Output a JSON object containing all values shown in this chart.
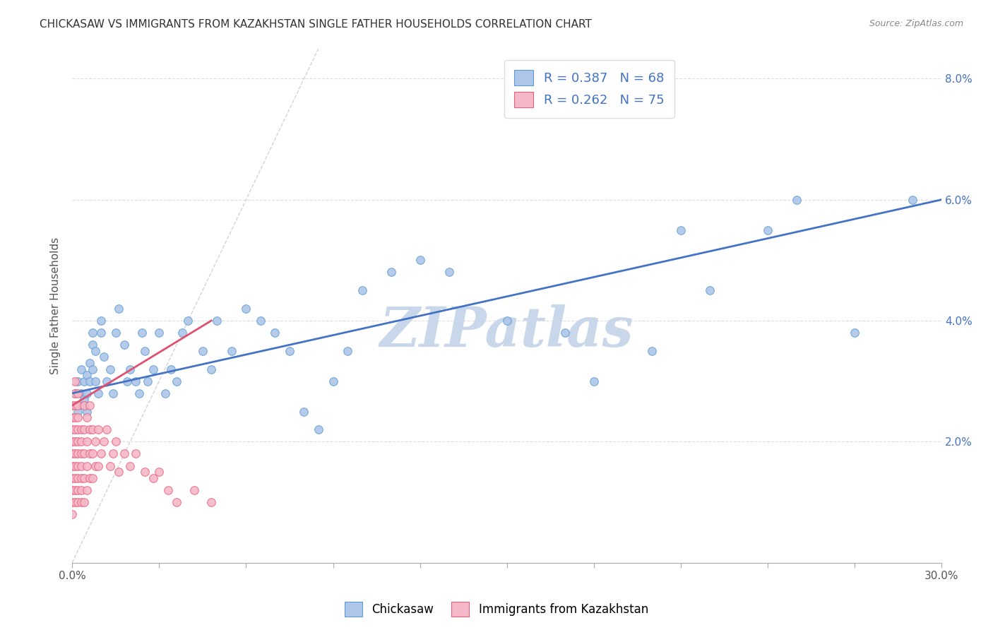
{
  "title": "CHICKASAW VS IMMIGRANTS FROM KAZAKHSTAN SINGLE FATHER HOUSEHOLDS CORRELATION CHART",
  "source": "Source: ZipAtlas.com",
  "ylabel": "Single Father Households",
  "x_min": 0.0,
  "x_max": 0.3,
  "y_min": 0.0,
  "y_max": 0.085,
  "x_ticks": [
    0.0,
    0.03,
    0.06,
    0.09,
    0.12,
    0.15,
    0.18,
    0.21,
    0.24,
    0.27,
    0.3
  ],
  "x_tick_labels_show": {
    "0.0": "0.0%",
    "0.30": "30.0%"
  },
  "y_ticks": [
    0.0,
    0.02,
    0.04,
    0.06,
    0.08
  ],
  "y_tick_labels_right": [
    "",
    "2.0%",
    "4.0%",
    "6.0%",
    "8.0%"
  ],
  "chickasaw_R": 0.387,
  "chickasaw_N": 68,
  "kazakhstan_R": 0.262,
  "kazakhstan_N": 75,
  "chickasaw_color": "#aec6e8",
  "kazakhstan_color": "#f5b8c8",
  "chickasaw_edge_color": "#5b9bd5",
  "kazakhstan_edge_color": "#e8607a",
  "chickasaw_line_color": "#4472c4",
  "kazakhstan_line_color": "#e05070",
  "diagonal_color": "#c0c0c0",
  "watermark": "ZIPatlas",
  "watermark_color": "#c8d8ea",
  "legend_label_1": "Chickasaw",
  "legend_label_2": "Immigrants from Kazakhstan",
  "chickasaw_x": [
    0.001,
    0.002,
    0.002,
    0.003,
    0.003,
    0.004,
    0.004,
    0.004,
    0.005,
    0.005,
    0.005,
    0.006,
    0.006,
    0.007,
    0.007,
    0.007,
    0.008,
    0.008,
    0.009,
    0.01,
    0.01,
    0.011,
    0.012,
    0.013,
    0.014,
    0.015,
    0.016,
    0.018,
    0.019,
    0.02,
    0.022,
    0.023,
    0.024,
    0.025,
    0.026,
    0.028,
    0.03,
    0.032,
    0.034,
    0.036,
    0.038,
    0.04,
    0.045,
    0.048,
    0.05,
    0.055,
    0.06,
    0.065,
    0.07,
    0.075,
    0.08,
    0.085,
    0.09,
    0.095,
    0.1,
    0.11,
    0.12,
    0.13,
    0.15,
    0.17,
    0.18,
    0.2,
    0.21,
    0.22,
    0.24,
    0.25,
    0.27,
    0.29
  ],
  "chickasaw_y": [
    0.028,
    0.03,
    0.025,
    0.032,
    0.028,
    0.03,
    0.026,
    0.027,
    0.031,
    0.028,
    0.025,
    0.033,
    0.03,
    0.038,
    0.036,
    0.032,
    0.035,
    0.03,
    0.028,
    0.04,
    0.038,
    0.034,
    0.03,
    0.032,
    0.028,
    0.038,
    0.042,
    0.036,
    0.03,
    0.032,
    0.03,
    0.028,
    0.038,
    0.035,
    0.03,
    0.032,
    0.038,
    0.028,
    0.032,
    0.03,
    0.038,
    0.04,
    0.035,
    0.032,
    0.04,
    0.035,
    0.042,
    0.04,
    0.038,
    0.035,
    0.025,
    0.022,
    0.03,
    0.035,
    0.045,
    0.048,
    0.05,
    0.048,
    0.04,
    0.038,
    0.03,
    0.035,
    0.055,
    0.045,
    0.055,
    0.06,
    0.038,
    0.06
  ],
  "kazakhstan_x": [
    0.0,
    0.0,
    0.0,
    0.0,
    0.0,
    0.0,
    0.0,
    0.0,
    0.0,
    0.0,
    0.001,
    0.001,
    0.001,
    0.001,
    0.001,
    0.001,
    0.001,
    0.001,
    0.001,
    0.001,
    0.001,
    0.002,
    0.002,
    0.002,
    0.002,
    0.002,
    0.002,
    0.002,
    0.002,
    0.002,
    0.002,
    0.003,
    0.003,
    0.003,
    0.003,
    0.003,
    0.003,
    0.003,
    0.004,
    0.004,
    0.004,
    0.004,
    0.004,
    0.005,
    0.005,
    0.005,
    0.005,
    0.006,
    0.006,
    0.006,
    0.006,
    0.007,
    0.007,
    0.007,
    0.008,
    0.008,
    0.009,
    0.009,
    0.01,
    0.011,
    0.012,
    0.013,
    0.014,
    0.015,
    0.016,
    0.018,
    0.02,
    0.022,
    0.025,
    0.028,
    0.03,
    0.033,
    0.036,
    0.042,
    0.048
  ],
  "kazakhstan_y": [
    0.008,
    0.01,
    0.012,
    0.014,
    0.016,
    0.018,
    0.02,
    0.022,
    0.024,
    0.026,
    0.01,
    0.012,
    0.014,
    0.016,
    0.018,
    0.02,
    0.022,
    0.024,
    0.026,
    0.028,
    0.03,
    0.01,
    0.012,
    0.014,
    0.016,
    0.018,
    0.02,
    0.022,
    0.024,
    0.026,
    0.028,
    0.01,
    0.012,
    0.014,
    0.016,
    0.018,
    0.02,
    0.022,
    0.01,
    0.014,
    0.018,
    0.022,
    0.026,
    0.012,
    0.016,
    0.02,
    0.024,
    0.014,
    0.018,
    0.022,
    0.026,
    0.014,
    0.018,
    0.022,
    0.016,
    0.02,
    0.016,
    0.022,
    0.018,
    0.02,
    0.022,
    0.016,
    0.018,
    0.02,
    0.015,
    0.018,
    0.016,
    0.018,
    0.015,
    0.014,
    0.015,
    0.012,
    0.01,
    0.012,
    0.01
  ],
  "chickasaw_trendline_x": [
    0.0,
    0.3
  ],
  "chickasaw_trendline_y": [
    0.028,
    0.06
  ],
  "kazakhstan_trendline_x": [
    0.0,
    0.048
  ],
  "kazakhstan_trendline_y": [
    0.026,
    0.04
  ]
}
